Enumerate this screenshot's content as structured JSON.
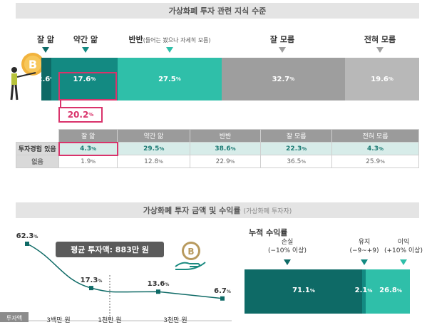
{
  "top_title": "가상화폐 투자 관련 지식 수준",
  "knowledge_levels": [
    {
      "label": "잘 앎",
      "note": "",
      "value": "2.6",
      "color": "#0e6a66"
    },
    {
      "label": "약간 앎",
      "note": "",
      "value": "17.6",
      "color": "#138a82"
    },
    {
      "label": "반반",
      "note": "(들어는 봤으나 자세히 모름)",
      "value": "27.5",
      "color": "#2fbfa9"
    },
    {
      "label": "잘 모름",
      "note": "",
      "value": "32.7",
      "color": "#9e9e9e"
    },
    {
      "label": "전혀 모름",
      "note": "",
      "value": "19.6",
      "color": "#b8b8b8"
    }
  ],
  "combined_known": "20.2",
  "pct_sign": "%",
  "table": {
    "headers": [
      "",
      "잘 앎",
      "약간 앎",
      "반반",
      "잘 모름",
      "전혀 모름"
    ],
    "rows": [
      {
        "label": "투자경험 있음",
        "values": [
          "4.3",
          "29.5",
          "38.6",
          "22.3",
          "4.3"
        ]
      },
      {
        "label": "없음",
        "values": [
          "1.9",
          "12.8",
          "22.9",
          "36.5",
          "25.9"
        ]
      }
    ]
  },
  "bottom_title": "가상화폐 투자 금액 및 수익률",
  "bottom_subtitle": "(가상화폐 투자자)",
  "avg_label": "평균 투자액: 883만 원",
  "cumulative_title": "누적 수익률",
  "returns": [
    {
      "label": "손실",
      "range": "(−10% 이상)",
      "value": "71.1"
    },
    {
      "label": "유지",
      "range": "(−9~+9)",
      "value": "2.1"
    },
    {
      "label": "이익",
      "range": "(+10% 이상)",
      "value": "26.8"
    }
  ],
  "chart_data": [
    {
      "type": "bar",
      "title": "가상화폐 투자 관련 지식 수준",
      "categories": [
        "잘 앎",
        "약간 앎",
        "반반",
        "잘 모름",
        "전혀 모름"
      ],
      "values": [
        2.6,
        17.6,
        27.5,
        32.7,
        19.6
      ],
      "stacked": true
    },
    {
      "type": "line",
      "title": "가상화폐 투자 금액 및 수익률",
      "xlabel": "투자액",
      "x": [
        "3백만 원",
        "1천만 원",
        "3천만 원"
      ],
      "points": [
        {
          "x_pos": "≤3백만 원",
          "y": 62.3
        },
        {
          "x_pos": "3백만 원",
          "y": 17.3
        },
        {
          "x_pos": "1천만 원~3천만 원",
          "y": 13.6
        },
        {
          "x_pos": "3천만 원+",
          "y": 6.7
        }
      ]
    },
    {
      "type": "bar",
      "title": "누적 수익률",
      "categories": [
        "손실",
        "유지",
        "이익"
      ],
      "values": [
        71.1,
        2.1,
        26.8
      ],
      "stacked": true
    }
  ],
  "line_labels": [
    "62.3",
    "17.3",
    "13.6",
    "6.7"
  ],
  "x_axis_label": "투자액",
  "x_ticks": [
    "3백만 원",
    "1천만 원",
    "3천만 원"
  ],
  "icon_names": [
    "bitcoin-person-icon",
    "bitcoin-hand-icon"
  ]
}
